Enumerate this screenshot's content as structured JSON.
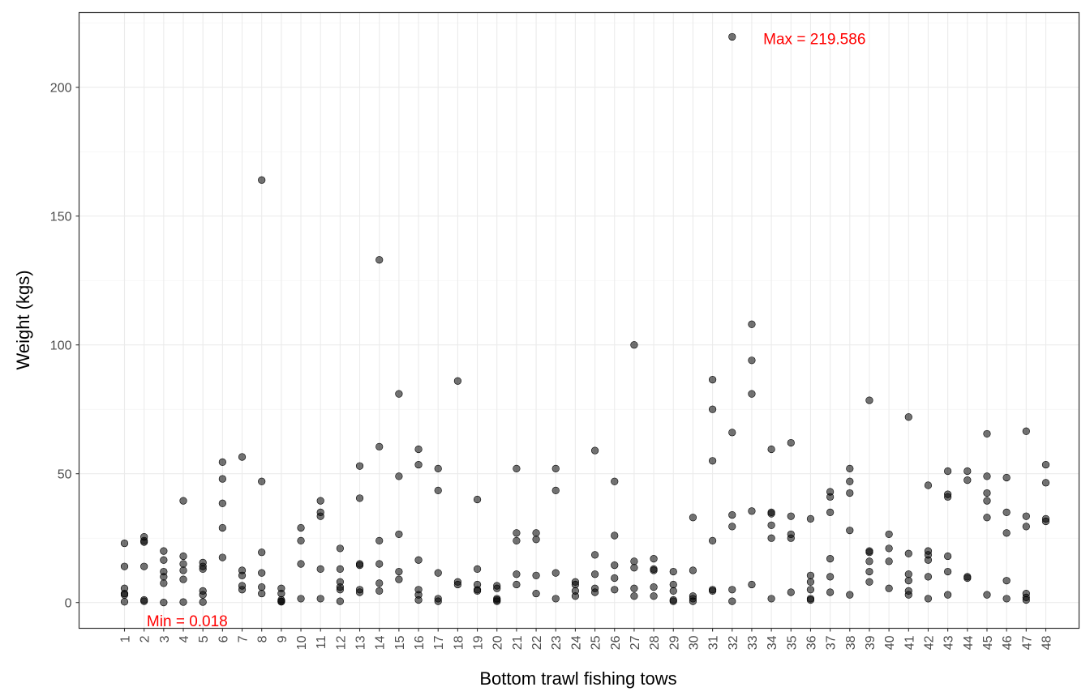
{
  "chart_data": {
    "type": "scatter",
    "title": "",
    "xlabel": "Bottom trawl fishing tows",
    "ylabel": "Weight (kgs)",
    "categories": [
      "1",
      "2",
      "3",
      "4",
      "5",
      "6",
      "7",
      "8",
      "9",
      "10",
      "11",
      "12",
      "13",
      "14",
      "15",
      "16",
      "17",
      "18",
      "19",
      "20",
      "21",
      "22",
      "23",
      "24",
      "25",
      "26",
      "27",
      "28",
      "29",
      "30",
      "31",
      "32",
      "33",
      "34",
      "35",
      "36",
      "37",
      "38",
      "39",
      "40",
      "41",
      "42",
      "43",
      "44",
      "45",
      "46",
      "47",
      "48"
    ],
    "ylim": [
      -10,
      229
    ],
    "yticks": [
      0,
      50,
      100,
      150,
      200
    ],
    "grid": true,
    "point_color": "#000000",
    "point_opacity": 0.55,
    "annotation_color": "#ff0000",
    "annotations": [
      {
        "text": "Max = 219.586",
        "x": 36.2,
        "y": 219
      },
      {
        "text": "Min = 0.018",
        "x": 4.2,
        "y": -7
      }
    ],
    "points": [
      [
        1,
        23
      ],
      [
        1,
        14
      ],
      [
        1,
        5.5
      ],
      [
        1,
        3.5
      ],
      [
        1,
        3
      ],
      [
        1,
        0.3
      ],
      [
        2,
        25.5
      ],
      [
        2,
        24
      ],
      [
        2,
        23.5
      ],
      [
        2,
        14
      ],
      [
        2,
        1
      ],
      [
        2,
        0.5
      ],
      [
        3,
        20
      ],
      [
        3,
        16.5
      ],
      [
        3,
        12
      ],
      [
        3,
        10
      ],
      [
        3,
        7.5
      ],
      [
        3,
        0.018
      ],
      [
        4,
        39.5
      ],
      [
        4,
        18
      ],
      [
        4,
        15
      ],
      [
        4,
        12.5
      ],
      [
        4,
        9
      ],
      [
        4,
        0.2
      ],
      [
        5,
        15.5
      ],
      [
        5,
        14
      ],
      [
        5,
        13
      ],
      [
        5,
        4.5
      ],
      [
        5,
        3
      ],
      [
        5,
        0.2
      ],
      [
        6,
        54.5
      ],
      [
        6,
        48
      ],
      [
        6,
        38.5
      ],
      [
        6,
        29
      ],
      [
        6,
        17.5
      ],
      [
        7,
        56.5
      ],
      [
        7,
        12.5
      ],
      [
        7,
        10.5
      ],
      [
        7,
        6.5
      ],
      [
        7,
        5
      ],
      [
        8,
        164
      ],
      [
        8,
        47
      ],
      [
        8,
        19.5
      ],
      [
        8,
        11.5
      ],
      [
        8,
        6
      ],
      [
        8,
        3.5
      ],
      [
        9,
        5.5
      ],
      [
        9,
        3.5
      ],
      [
        9,
        1
      ],
      [
        9,
        0.5
      ],
      [
        9,
        0.3
      ],
      [
        10,
        29
      ],
      [
        10,
        24
      ],
      [
        10,
        15
      ],
      [
        10,
        1.5
      ],
      [
        11,
        39.5
      ],
      [
        11,
        35
      ],
      [
        11,
        33.5
      ],
      [
        11,
        13
      ],
      [
        11,
        1.5
      ],
      [
        12,
        21
      ],
      [
        12,
        13
      ],
      [
        12,
        8
      ],
      [
        12,
        6
      ],
      [
        12,
        5
      ],
      [
        12,
        0.5
      ],
      [
        13,
        53
      ],
      [
        13,
        40.5
      ],
      [
        13,
        15
      ],
      [
        13,
        14.5
      ],
      [
        13,
        5
      ],
      [
        13,
        4
      ],
      [
        14,
        133
      ],
      [
        14,
        60.5
      ],
      [
        14,
        24
      ],
      [
        14,
        15
      ],
      [
        14,
        7.5
      ],
      [
        14,
        4.5
      ],
      [
        15,
        81
      ],
      [
        15,
        49
      ],
      [
        15,
        26.5
      ],
      [
        15,
        12
      ],
      [
        15,
        9
      ],
      [
        16,
        59.5
      ],
      [
        16,
        53.5
      ],
      [
        16,
        16.5
      ],
      [
        16,
        5
      ],
      [
        16,
        3
      ],
      [
        16,
        1
      ],
      [
        17,
        52
      ],
      [
        17,
        43.5
      ],
      [
        17,
        11.5
      ],
      [
        17,
        1.5
      ],
      [
        17,
        0.5
      ],
      [
        18,
        86
      ],
      [
        18,
        8
      ],
      [
        18,
        7
      ],
      [
        19,
        40
      ],
      [
        19,
        13
      ],
      [
        19,
        7
      ],
      [
        19,
        5
      ],
      [
        19,
        4.5
      ],
      [
        20,
        6.5
      ],
      [
        20,
        5.5
      ],
      [
        20,
        1.5
      ],
      [
        20,
        1
      ],
      [
        20,
        0.5
      ],
      [
        21,
        52
      ],
      [
        21,
        27
      ],
      [
        21,
        24
      ],
      [
        21,
        11
      ],
      [
        21,
        7
      ],
      [
        22,
        27
      ],
      [
        22,
        24.5
      ],
      [
        22,
        10.5
      ],
      [
        22,
        3.5
      ],
      [
        23,
        52
      ],
      [
        23,
        43.5
      ],
      [
        23,
        11.5
      ],
      [
        23,
        1.5
      ],
      [
        24,
        8
      ],
      [
        24,
        7
      ],
      [
        24,
        4.5
      ],
      [
        24,
        2.5
      ],
      [
        25,
        59
      ],
      [
        25,
        18.5
      ],
      [
        25,
        11
      ],
      [
        25,
        5.5
      ],
      [
        25,
        4
      ],
      [
        26,
        47
      ],
      [
        26,
        26
      ],
      [
        26,
        14.5
      ],
      [
        26,
        9.5
      ],
      [
        26,
        5
      ],
      [
        27,
        100
      ],
      [
        27,
        16
      ],
      [
        27,
        13.5
      ],
      [
        27,
        5.5
      ],
      [
        27,
        2.5
      ],
      [
        28,
        17
      ],
      [
        28,
        13
      ],
      [
        28,
        12.5
      ],
      [
        28,
        6
      ],
      [
        28,
        2.5
      ],
      [
        29,
        12
      ],
      [
        29,
        7
      ],
      [
        29,
        4.5
      ],
      [
        29,
        1
      ],
      [
        29,
        0.5
      ],
      [
        30,
        33
      ],
      [
        30,
        12.5
      ],
      [
        30,
        2.5
      ],
      [
        30,
        1.5
      ],
      [
        30,
        0.5
      ],
      [
        31,
        86.5
      ],
      [
        31,
        75
      ],
      [
        31,
        55
      ],
      [
        31,
        24
      ],
      [
        31,
        5
      ],
      [
        31,
        4.5
      ],
      [
        32,
        219.586
      ],
      [
        32,
        66
      ],
      [
        32,
        34
      ],
      [
        32,
        29.5
      ],
      [
        32,
        5
      ],
      [
        32,
        0.5
      ],
      [
        33,
        108
      ],
      [
        33,
        94
      ],
      [
        33,
        81
      ],
      [
        33,
        35.5
      ],
      [
        33,
        7
      ],
      [
        34,
        59.5
      ],
      [
        34,
        35
      ],
      [
        34,
        34.5
      ],
      [
        34,
        30
      ],
      [
        34,
        25
      ],
      [
        34,
        1.5
      ],
      [
        35,
        62
      ],
      [
        35,
        33.5
      ],
      [
        35,
        26.5
      ],
      [
        35,
        25
      ],
      [
        35,
        4
      ],
      [
        36,
        32.5
      ],
      [
        36,
        10.5
      ],
      [
        36,
        8
      ],
      [
        36,
        5
      ],
      [
        36,
        1.5
      ],
      [
        36,
        1
      ],
      [
        37,
        43
      ],
      [
        37,
        41
      ],
      [
        37,
        35
      ],
      [
        37,
        17
      ],
      [
        37,
        10
      ],
      [
        37,
        4
      ],
      [
        38,
        52
      ],
      [
        38,
        47
      ],
      [
        38,
        42.5
      ],
      [
        38,
        28
      ],
      [
        38,
        3
      ],
      [
        39,
        78.5
      ],
      [
        39,
        20
      ],
      [
        39,
        19.5
      ],
      [
        39,
        16
      ],
      [
        39,
        12
      ],
      [
        39,
        8
      ],
      [
        40,
        26.5
      ],
      [
        40,
        21
      ],
      [
        40,
        16
      ],
      [
        40,
        5.5
      ],
      [
        41,
        72
      ],
      [
        41,
        19
      ],
      [
        41,
        11
      ],
      [
        41,
        8.5
      ],
      [
        41,
        4.5
      ],
      [
        41,
        3
      ],
      [
        42,
        45.5
      ],
      [
        42,
        20
      ],
      [
        42,
        18.5
      ],
      [
        42,
        16.5
      ],
      [
        42,
        10
      ],
      [
        42,
        1.5
      ],
      [
        43,
        51
      ],
      [
        43,
        42
      ],
      [
        43,
        41
      ],
      [
        43,
        18
      ],
      [
        43,
        12
      ],
      [
        43,
        3
      ],
      [
        44,
        51
      ],
      [
        44,
        47.5
      ],
      [
        44,
        10
      ],
      [
        44,
        9.5
      ],
      [
        45,
        65.5
      ],
      [
        45,
        49
      ],
      [
        45,
        42.5
      ],
      [
        45,
        39.5
      ],
      [
        45,
        33
      ],
      [
        45,
        3
      ],
      [
        46,
        48.5
      ],
      [
        46,
        35
      ],
      [
        46,
        27
      ],
      [
        46,
        8.5
      ],
      [
        46,
        1.5
      ],
      [
        47,
        66.5
      ],
      [
        47,
        33.5
      ],
      [
        47,
        29.5
      ],
      [
        47,
        3.5
      ],
      [
        47,
        2
      ],
      [
        47,
        1
      ],
      [
        48,
        53.5
      ],
      [
        48,
        46.5
      ],
      [
        48,
        32.5
      ],
      [
        48,
        31.5
      ]
    ]
  }
}
